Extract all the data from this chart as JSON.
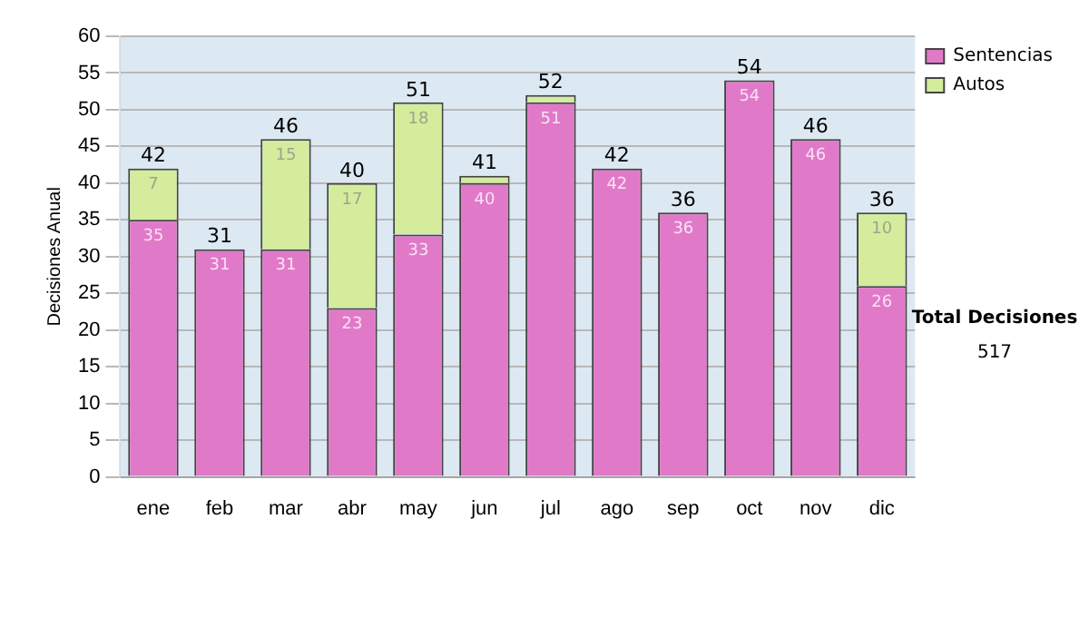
{
  "chart_data": {
    "type": "bar",
    "stacked": true,
    "ylabel": "Decisiones Anual",
    "categories": [
      "ene",
      "feb",
      "mar",
      "abr",
      "may",
      "jun",
      "jul",
      "ago",
      "sep",
      "oct",
      "nov",
      "dic"
    ],
    "series": [
      {
        "name": "Sentencias",
        "color": "#e07ac8",
        "values": [
          35,
          31,
          31,
          23,
          33,
          40,
          51,
          42,
          36,
          54,
          46,
          26
        ],
        "value_labels": [
          "35",
          "31",
          "31",
          "23",
          "33",
          "40",
          "51",
          "42",
          "36",
          "54",
          "46",
          "26"
        ]
      },
      {
        "name": "Autos",
        "color": "#d4ec9c",
        "values": [
          7,
          0,
          15,
          17,
          18,
          1,
          1,
          0,
          0,
          0,
          0,
          10
        ],
        "value_labels": [
          "7",
          null,
          "15",
          "17",
          "18",
          null,
          null,
          null,
          null,
          null,
          null,
          "10"
        ]
      }
    ],
    "totals": [
      "42",
      "31",
      "46",
      "40",
      "51",
      "41",
      "52",
      "42",
      "36",
      "54",
      "46",
      "36"
    ],
    "ylim": [
      0,
      60
    ],
    "yticks": [
      0,
      5,
      10,
      15,
      20,
      25,
      30,
      35,
      40,
      45,
      50,
      55,
      60
    ],
    "grid": "y",
    "legend": "right",
    "annotations": [
      "Total Decisiones",
      "517"
    ]
  }
}
